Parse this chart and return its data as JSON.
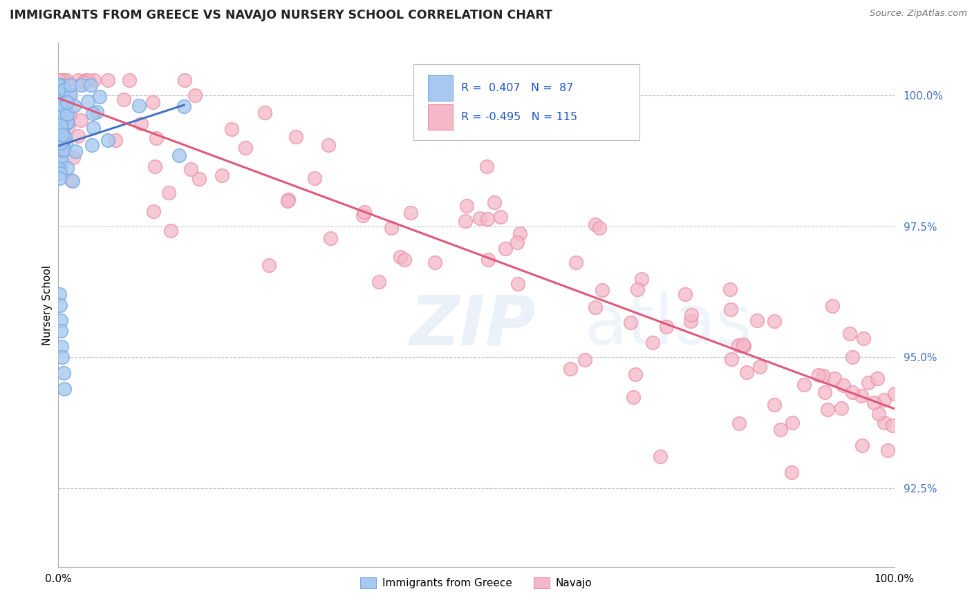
{
  "title": "IMMIGRANTS FROM GREECE VS NAVAJO NURSERY SCHOOL CORRELATION CHART",
  "source": "Source: ZipAtlas.com",
  "ylabel": "Nursery School",
  "watermark_zip": "ZIP",
  "watermark_atlas": "atlas",
  "legend": {
    "blue_r": 0.407,
    "blue_n": 87,
    "pink_r": -0.495,
    "pink_n": 115
  },
  "y_tick_vals": [
    0.925,
    0.95,
    0.975,
    1.0
  ],
  "y_tick_labels": [
    "92.5%",
    "95.0%",
    "97.5%",
    "100.0%"
  ],
  "xlim": [
    0.0,
    1.0
  ],
  "ylim": [
    0.91,
    1.01
  ],
  "blue_color": "#a8c8f0",
  "blue_edge_color": "#7aaae0",
  "pink_color": "#f5b8c8",
  "pink_edge_color": "#e890a8",
  "blue_line_color": "#4472c4",
  "pink_line_color": "#e05878",
  "title_color": "#222222",
  "source_color": "#777777",
  "background_color": "#ffffff",
  "grid_color": "#c0c0d0",
  "tick_color": "#4472c4",
  "legend_text_color": "#1a55cc"
}
